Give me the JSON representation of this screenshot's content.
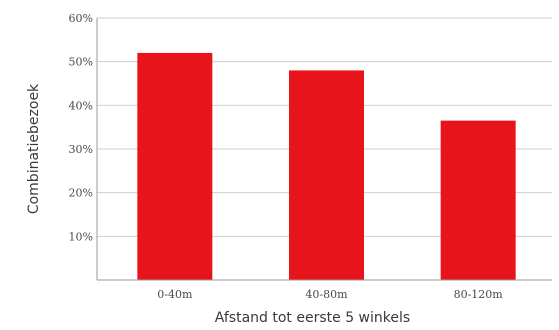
{
  "chart_data": {
    "type": "bar",
    "categories": [
      "0-40m",
      "40-80m",
      "80-120m"
    ],
    "values": [
      52,
      48,
      36.5
    ],
    "xlabel": "Afstand tot eerste 5 winkels",
    "ylabel": "Combinatiebezoek",
    "ylim": [
      0,
      60
    ],
    "yticks": [
      10,
      20,
      30,
      40,
      50,
      60
    ],
    "ytick_labels": [
      "10%",
      "20%",
      "30%",
      "40%",
      "50%",
      "60%"
    ],
    "grid": true,
    "bar_color": "#e8141c",
    "grid_color": "#cfcfcf"
  }
}
